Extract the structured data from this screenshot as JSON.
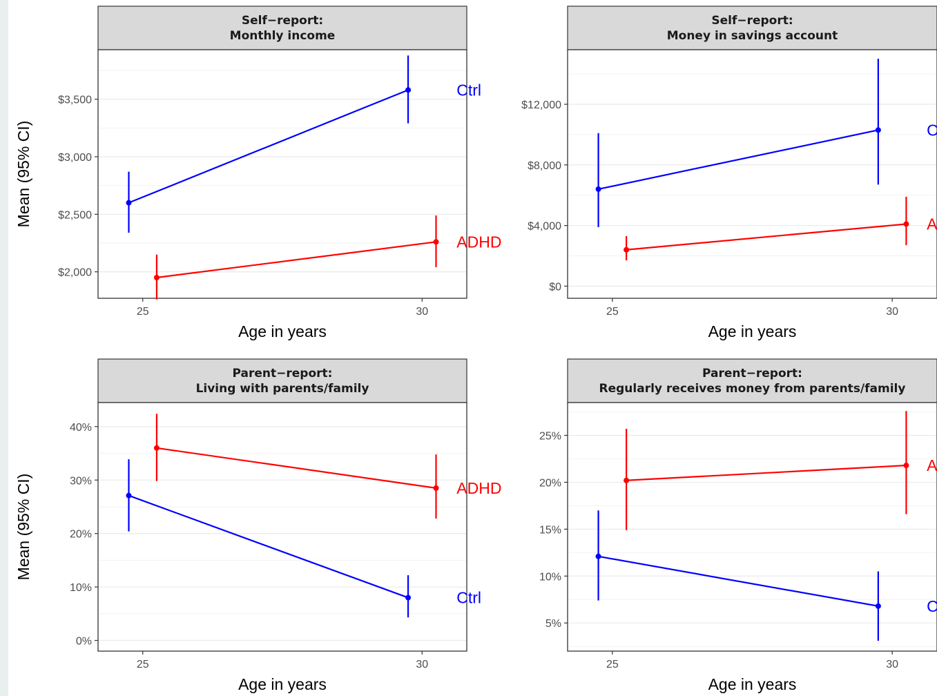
{
  "colors": {
    "ctrl": "#0000ff",
    "adhd": "#ff0000",
    "strip_bg": "#d9d9d9",
    "grid": "#ebebeb",
    "axis": "#333333"
  },
  "chart_data": [
    {
      "type": "line",
      "strip": [
        "Self−report:",
        "Monthly income"
      ],
      "xlabel": "Age in years",
      "ylabel": "Mean (95% CI)",
      "x_ticks": [
        25,
        30
      ],
      "x_tick_labels": [
        "25",
        "30"
      ],
      "y_ticks": [
        2000,
        2500,
        3000,
        3500
      ],
      "y_tick_labels": [
        "$2,000",
        "$2,500",
        "$3,000",
        "$3,500"
      ],
      "ylim": [
        1770,
        3930
      ],
      "series": [
        {
          "name": "Ctrl",
          "color": "#0000ff",
          "x": [
            25,
            30
          ],
          "y": [
            2600,
            3580
          ],
          "lower": [
            2340,
            3290
          ],
          "upper": [
            2870,
            3880
          ]
        },
        {
          "name": "ADHD",
          "color": "#ff0000",
          "x": [
            25,
            30
          ],
          "y": [
            1950,
            2260
          ],
          "lower": [
            1760,
            2040
          ],
          "upper": [
            2150,
            2490
          ]
        }
      ]
    },
    {
      "type": "line",
      "strip": [
        "Self−report:",
        "Money in savings account"
      ],
      "xlabel": "Age in years",
      "ylabel": "",
      "x_ticks": [
        25,
        30
      ],
      "x_tick_labels": [
        "25",
        "30"
      ],
      "y_ticks": [
        0,
        4000,
        8000,
        12000
      ],
      "y_tick_labels": [
        "$0",
        "$4,000",
        "$8,000",
        "$12,000"
      ],
      "ylim": [
        -800,
        15600
      ],
      "series": [
        {
          "name": "Ctrl",
          "color": "#0000ff",
          "x": [
            25,
            30
          ],
          "y": [
            6400,
            10300
          ],
          "lower": [
            3900,
            6700
          ],
          "upper": [
            10100,
            15000
          ]
        },
        {
          "name": "ADHD",
          "color": "#ff0000",
          "x": [
            25,
            30
          ],
          "y": [
            2400,
            4100
          ],
          "lower": [
            1700,
            2700
          ],
          "upper": [
            3300,
            5900
          ]
        }
      ]
    },
    {
      "type": "line",
      "strip": [
        "Parent−report:",
        "Living with parents/family"
      ],
      "xlabel": "Age in years",
      "ylabel": "Mean (95% CI)",
      "x_ticks": [
        25,
        30
      ],
      "x_tick_labels": [
        "25",
        "30"
      ],
      "y_ticks": [
        0,
        10,
        20,
        30,
        40
      ],
      "y_tick_labels": [
        "0%",
        "10%",
        "20%",
        "30%",
        "40%"
      ],
      "ylim": [
        -2,
        44.5
      ],
      "series": [
        {
          "name": "Ctrl",
          "color": "#0000ff",
          "x": [
            25,
            30
          ],
          "y": [
            27.1,
            8.0
          ],
          "lower": [
            20.4,
            4.3
          ],
          "upper": [
            33.9,
            12.2
          ]
        },
        {
          "name": "ADHD",
          "color": "#ff0000",
          "x": [
            25,
            30
          ],
          "y": [
            36.0,
            28.5
          ],
          "lower": [
            29.8,
            22.8
          ],
          "upper": [
            42.4,
            34.8
          ]
        }
      ]
    },
    {
      "type": "line",
      "strip": [
        "Parent−report:",
        "Regularly receives money from parents/family"
      ],
      "xlabel": "Age in years",
      "ylabel": "",
      "x_ticks": [
        25,
        30
      ],
      "x_tick_labels": [
        "25",
        "30"
      ],
      "y_ticks": [
        5,
        10,
        15,
        20,
        25
      ],
      "y_tick_labels": [
        "5%",
        "10%",
        "15%",
        "20%",
        "25%"
      ],
      "ylim": [
        2.0,
        28.5
      ],
      "series": [
        {
          "name": "Ctrl",
          "color": "#0000ff",
          "x": [
            25,
            30
          ],
          "y": [
            12.1,
            6.8
          ],
          "lower": [
            7.4,
            3.1
          ],
          "upper": [
            17.0,
            10.5
          ]
        },
        {
          "name": "ADHD",
          "color": "#ff0000",
          "x": [
            25,
            30
          ],
          "y": [
            20.2,
            21.8
          ],
          "lower": [
            14.9,
            16.6
          ],
          "upper": [
            25.7,
            27.6
          ]
        }
      ]
    }
  ]
}
